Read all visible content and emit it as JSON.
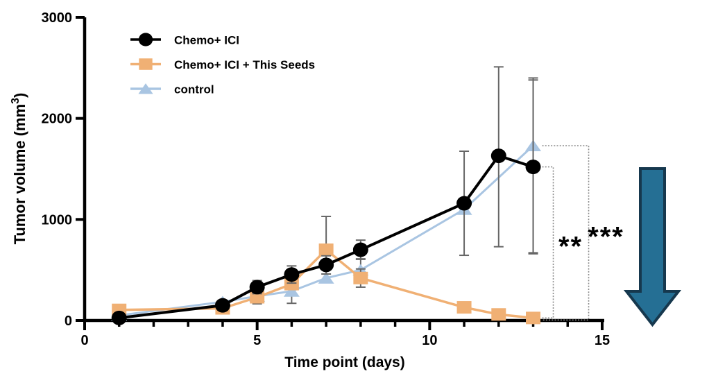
{
  "chart_data": {
    "type": "line",
    "title": "",
    "xlabel": "Time point (days)",
    "ylabel": "Tumor volume  (mm³)",
    "xlim": [
      0,
      15
    ],
    "ylim": [
      0,
      3000
    ],
    "x_major_ticks": [
      0,
      5,
      10,
      15
    ],
    "x_minor_tick_step": 1,
    "y_major_ticks": [
      0,
      1000,
      2000,
      3000
    ],
    "grid": false,
    "legend_position": "top-left-inside",
    "error_bar_color": "#666666",
    "bracket_color": "#8a8a8a",
    "series": [
      {
        "name": "Chemo+ ICI",
        "marker": "circle",
        "color": "#000000",
        "line_width": 4,
        "points": [
          {
            "x": 1,
            "y": 25
          },
          {
            "x": 4,
            "y": 150
          },
          {
            "x": 5,
            "y": 330,
            "lo": 265,
            "hi": 395
          },
          {
            "x": 6,
            "y": 455,
            "lo": 370,
            "hi": 540
          },
          {
            "x": 7,
            "y": 550,
            "lo": 460,
            "hi": 640
          },
          {
            "x": 8,
            "y": 700,
            "lo": 610,
            "hi": 795
          },
          {
            "x": 11,
            "y": 1160,
            "lo": 645,
            "hi": 1675
          },
          {
            "x": 12,
            "y": 1630,
            "lo": 730,
            "hi": 2510
          },
          {
            "x": 13,
            "y": 1520,
            "lo": 660,
            "hi": 2380
          }
        ]
      },
      {
        "name": "Chemo+ ICI + This Seeds",
        "marker": "square",
        "color": "#F0B074",
        "line_width": 3.5,
        "points": [
          {
            "x": 1,
            "y": 105,
            "lo": 55,
            "hi": 150
          },
          {
            "x": 4,
            "y": 120
          },
          {
            "x": 5,
            "y": 230,
            "lo": 165,
            "hi": 295
          },
          {
            "x": 6,
            "y": 360
          },
          {
            "x": 7,
            "y": 700,
            "lo": 560,
            "hi": 1030
          },
          {
            "x": 8,
            "y": 420,
            "lo": 330,
            "hi": 510
          },
          {
            "x": 11,
            "y": 130,
            "lo": 85,
            "hi": 175
          },
          {
            "x": 12,
            "y": 60
          },
          {
            "x": 13,
            "y": 25
          }
        ]
      },
      {
        "name": "control",
        "marker": "triangle",
        "color": "#A9C5E2",
        "line_width": 3,
        "points": [
          {
            "x": 1,
            "y": 50
          },
          {
            "x": 4,
            "y": 185
          },
          {
            "x": 5,
            "y": 240
          },
          {
            "x": 6,
            "y": 290,
            "lo": 170,
            "hi": 400
          },
          {
            "x": 7,
            "y": 420
          },
          {
            "x": 8,
            "y": 500,
            "lo": 395,
            "hi": 605
          },
          {
            "x": 11,
            "y": 1100
          },
          {
            "x": 13,
            "y": 1730,
            "lo": 670,
            "hi": 2400
          }
        ]
      }
    ],
    "annotations": [
      {
        "text": "**",
        "between": [
          "Chemo+ ICI",
          "Chemo+ ICI + This Seeds"
        ],
        "at_x": 13
      },
      {
        "text": "***",
        "between": [
          "control",
          "Chemo+ ICI + This Seeds"
        ],
        "at_x": 13
      }
    ]
  },
  "decorations": {
    "down_arrow": {
      "direction": "down",
      "fill": "#256F94",
      "outline": "#16384E"
    }
  }
}
